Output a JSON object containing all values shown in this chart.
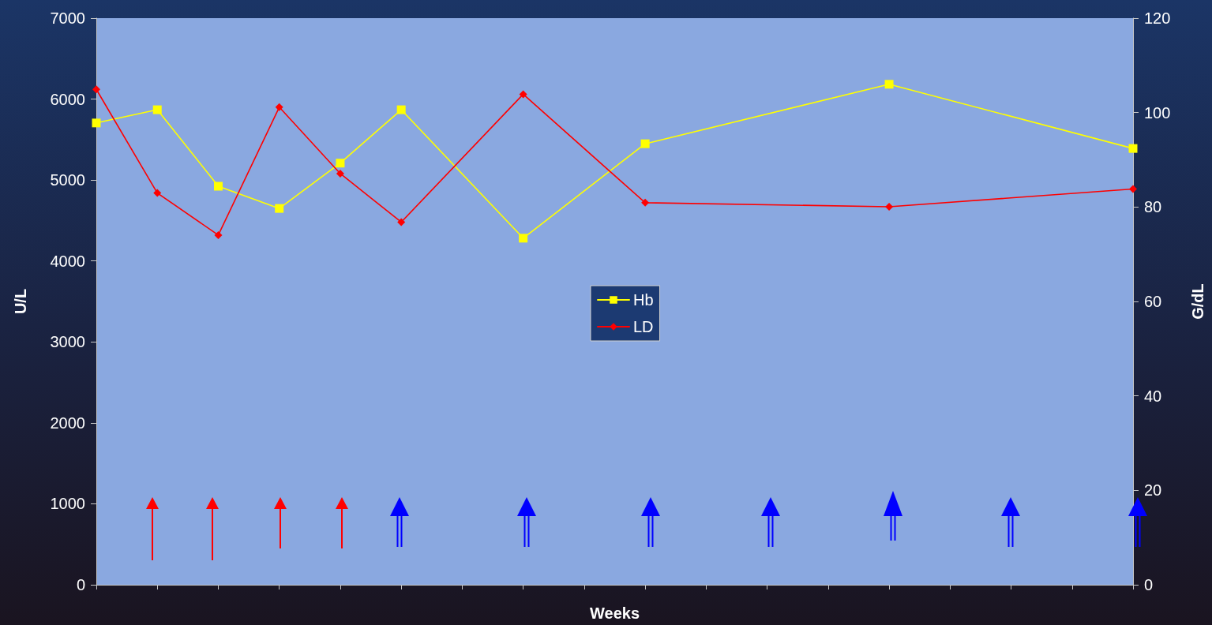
{
  "chart_data": {
    "type": "line",
    "xlabel": "Weeks",
    "ylabel": "U/L",
    "y2label": "G/dL",
    "categories": [
      null,
      null,
      null,
      null,
      null,
      null,
      null,
      null,
      null,
      null,
      null,
      null,
      null,
      null,
      null,
      null,
      null,
      null
    ],
    "series": [
      {
        "name": "Hb",
        "color": "#ffff00",
        "axis": "y2",
        "marker": "square",
        "values": [
          97.8,
          100.6,
          84.4,
          79.7,
          89.3,
          100.6,
          null,
          73.4,
          null,
          93.4,
          null,
          null,
          null,
          106,
          null,
          null,
          null,
          92.4
        ]
      },
      {
        "name": "LD",
        "color": "#ff0000",
        "axis": "y",
        "marker": "diamond",
        "values": [
          6120,
          4840,
          4320,
          5900,
          5080,
          4480,
          null,
          6060,
          null,
          4720,
          null,
          null,
          null,
          4670,
          null,
          null,
          null,
          4890
        ]
      }
    ],
    "ylim": [
      0,
      7000
    ],
    "yticks": [
      0,
      1000,
      2000,
      3000,
      4000,
      5000,
      6000,
      7000
    ],
    "y2lim": [
      0,
      120
    ],
    "y2ticks": [
      0,
      20,
      40,
      60,
      80,
      100,
      120
    ],
    "grid": false,
    "legend": "center"
  }
}
